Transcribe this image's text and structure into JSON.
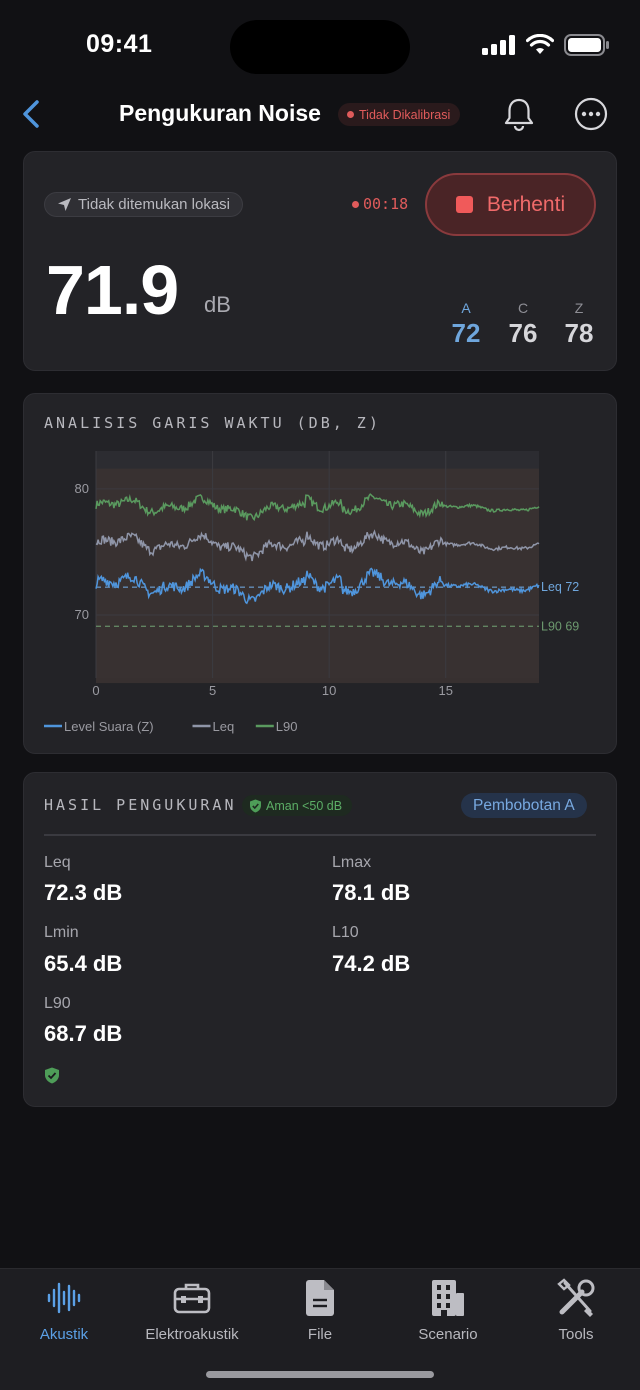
{
  "status_bar": {
    "time": "09:41"
  },
  "nav": {
    "title": "Pengukuran Noise",
    "calibration_badge": "Tidak Dikalibrasi",
    "icons": {
      "back": "chevron-left-icon",
      "notifications": "bell-icon",
      "more": "more-horizontal-icon"
    }
  },
  "meter": {
    "location": "Tidak ditemukan lokasi",
    "timer": "00:18",
    "stop_label": "Berhenti",
    "value": "71.9",
    "unit": "dB",
    "weightings": [
      {
        "label": "A",
        "value": "72"
      },
      {
        "label": "C",
        "value": "76"
      },
      {
        "label": "Z",
        "value": "78"
      }
    ],
    "colors": {
      "recording": "#e05b5b",
      "active_weighting": "#6fa6dc"
    }
  },
  "timeline": {
    "title": "ANALISIS GARIS WAKTU (DB, Z)",
    "chart_data": {
      "type": "line",
      "x_ticks": [
        "0",
        "5",
        "10",
        "15"
      ],
      "y_ticks": [
        "70",
        "80"
      ],
      "xlim": [
        0,
        19
      ],
      "ylim": [
        65,
        83
      ],
      "band": [
        64.6,
        81.6
      ],
      "series": [
        {
          "name": "Level Suara (Z)",
          "color": "#4f95dc",
          "base": 72.2,
          "amp": 0.6
        },
        {
          "name": "Leq",
          "color": "#8f95a8",
          "base": 75.5,
          "amp": 0.5
        },
        {
          "name": "L90",
          "color": "#5a9a5f",
          "base": 78.5,
          "amp": 0.45
        }
      ],
      "reference_lines": [
        {
          "label": "Leq 72",
          "value": 72.2,
          "color": "#6fa6dc"
        },
        {
          "label": "L90 69",
          "value": 69.1,
          "color": "#6d9a6f"
        }
      ],
      "grid": true,
      "legend": "bottom-left"
    }
  },
  "results": {
    "title": "HASIL PENGUKURAN",
    "safe_badge": "Aman <50 dB",
    "weighting_badge": "Pembobotan A",
    "items": [
      {
        "label": "Leq",
        "value": "72.3 dB"
      },
      {
        "label": "Lmax",
        "value": "78.1 dB"
      },
      {
        "label": "Lmin",
        "value": "65.4 dB"
      },
      {
        "label": "L10",
        "value": "74.2 dB"
      },
      {
        "label": "L90",
        "value": "68.7 dB"
      }
    ]
  },
  "tabs": [
    {
      "label": "Akustik",
      "icon": "waveform-icon",
      "active": true
    },
    {
      "label": "Elektroakustik",
      "icon": "toolbox-icon",
      "active": false
    },
    {
      "label": "File",
      "icon": "document-icon",
      "active": false
    },
    {
      "label": "Scenario",
      "icon": "building-icon",
      "active": false
    },
    {
      "label": "Tools",
      "icon": "tools-icon",
      "active": false
    }
  ]
}
